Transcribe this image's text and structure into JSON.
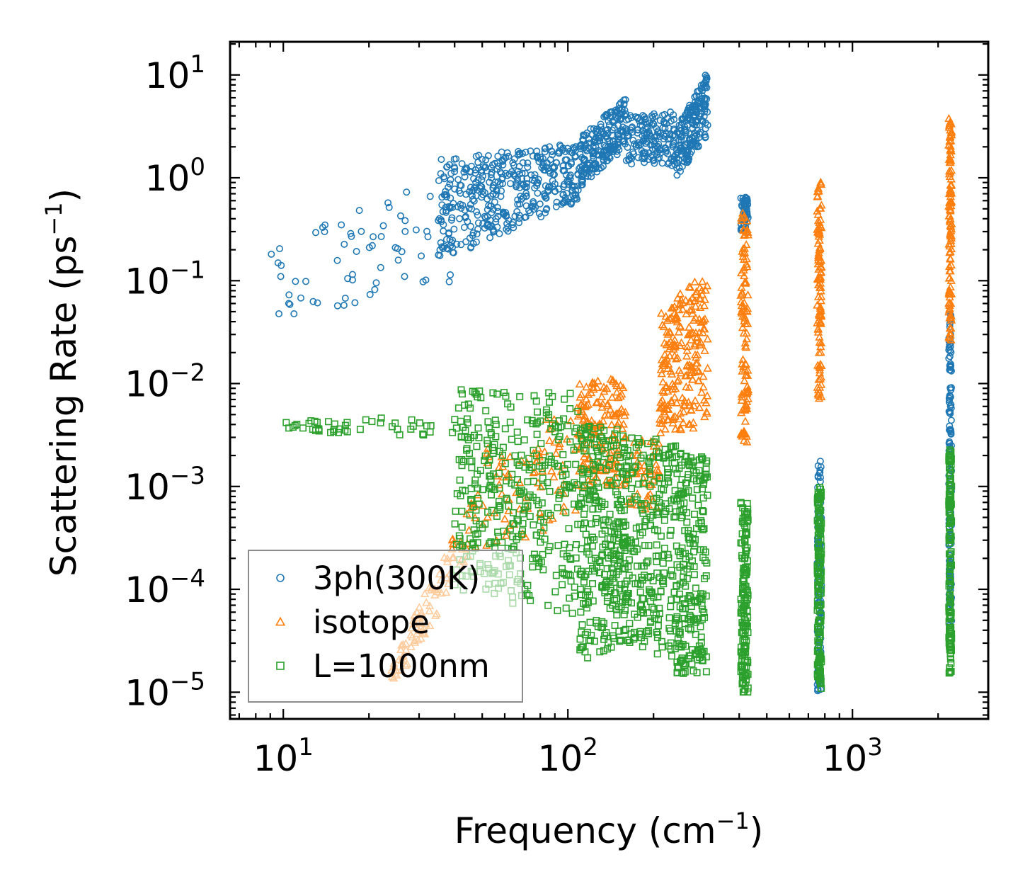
{
  "chart_data": {
    "type": "scatter",
    "title": "",
    "xlabel": {
      "text": "Frequency (cm",
      "sup": "−1",
      "close": ")"
    },
    "ylabel": {
      "text": "Scattering Rate (ps",
      "sup": "−1",
      "close": ")"
    },
    "xscale": "log",
    "yscale": "log",
    "xlim": [
      6.5,
      3000
    ],
    "ylim": [
      5.5e-06,
      21
    ],
    "x_ticks": [
      {
        "value": 10,
        "base": "10",
        "exp": "1"
      },
      {
        "value": 100,
        "base": "10",
        "exp": "2"
      },
      {
        "value": 1000,
        "base": "10",
        "exp": "3"
      }
    ],
    "y_ticks": [
      {
        "value": 10,
        "base": "10",
        "exp": "1"
      },
      {
        "value": 1,
        "base": "10",
        "exp": "0"
      },
      {
        "value": 0.1,
        "base": "10",
        "exp": "−1"
      },
      {
        "value": 0.01,
        "base": "10",
        "exp": "−2"
      },
      {
        "value": 0.001,
        "base": "10",
        "exp": "−3"
      },
      {
        "value": 0.0001,
        "base": "10",
        "exp": "−4"
      },
      {
        "value": 1e-05,
        "base": "10",
        "exp": "−5"
      }
    ],
    "legend_position": "lower-left",
    "series": [
      {
        "name": "3ph(300K)",
        "marker": "circle",
        "color": "#1f77b4",
        "bands": [
          {
            "type": "trend",
            "x_range": [
              9,
              40
            ],
            "y_start": [
              0.04,
              0.25
            ],
            "y_end": [
              0.1,
              1.2
            ],
            "n": 70
          },
          {
            "type": "trend",
            "x_range": [
              35,
              110
            ],
            "y_start": [
              0.15,
              1.5
            ],
            "y_end": [
              0.6,
              2.2
            ],
            "n": 420
          },
          {
            "type": "trend",
            "x_range": [
              110,
              160
            ],
            "y_start": [
              0.8,
              2.5
            ],
            "y_end": [
              2,
              6
            ],
            "n": 220
          },
          {
            "type": "trend",
            "x_range": [
              160,
              240
            ],
            "y_start": [
              1.3,
              4
            ],
            "y_end": [
              1.3,
              4.5
            ],
            "n": 160
          },
          {
            "type": "trend",
            "x_range": [
              240,
              310
            ],
            "y_start": [
              1,
              3
            ],
            "y_end": [
              2.5,
              11
            ],
            "n": 200
          },
          {
            "type": "column",
            "x_range": [
              405,
              430
            ],
            "y_range": [
              0.3,
              0.65
            ],
            "n": 60
          },
          {
            "type": "column",
            "x_range": [
              752,
              778
            ],
            "y_range": [
              1e-05,
              0.0018
            ],
            "n": 110
          },
          {
            "type": "column",
            "x_range": [
              2180,
              2230
            ],
            "y_range": [
              4e-05,
              0.048
            ],
            "n": 150
          }
        ]
      },
      {
        "name": "isotope",
        "marker": "triangle",
        "color": "#ff7f0e",
        "bands": [
          {
            "type": "trend",
            "x_range": [
              24,
              45
            ],
            "y_start": [
              1e-05,
              2e-05
            ],
            "y_end": [
              0.0002,
              0.0007
            ],
            "n": 90
          },
          {
            "type": "trend",
            "x_range": [
              45,
              110
            ],
            "y_start": [
              0.0002,
              0.002
            ],
            "y_end": [
              0.0005,
              0.007
            ],
            "n": 90
          },
          {
            "type": "trend",
            "x_range": [
              110,
              160
            ],
            "y_start": [
              0.001,
              0.01
            ],
            "y_end": [
              0.001,
              0.012
            ],
            "n": 160
          },
          {
            "type": "trend",
            "x_range": [
              160,
              210
            ],
            "y_start": [
              0.0006,
              0.003
            ],
            "y_end": [
              0.0006,
              0.003
            ],
            "n": 50
          },
          {
            "type": "trend",
            "x_range": [
              210,
              310
            ],
            "y_start": [
              0.003,
              0.05
            ],
            "y_end": [
              0.004,
              0.13
            ],
            "n": 220
          },
          {
            "type": "column",
            "x_range": [
              405,
              430
            ],
            "y_range": [
              0.0027,
              0.6
            ],
            "n": 110
          },
          {
            "type": "column",
            "x_range": [
              752,
              778
            ],
            "y_range": [
              0.007,
              0.95
            ],
            "n": 110
          },
          {
            "type": "column",
            "x_range": [
              2180,
              2230
            ],
            "y_range": [
              0.025,
              3.8
            ],
            "n": 120
          }
        ]
      },
      {
        "name": "L=1000nm",
        "marker": "square",
        "color": "#2ca02c",
        "bands": [
          {
            "type": "trend",
            "x_range": [
              9,
              40
            ],
            "y_start": [
              0.0035,
              0.0042
            ],
            "y_end": [
              0.003,
              0.005
            ],
            "n": 45
          },
          {
            "type": "trend",
            "x_range": [
              40,
              110
            ],
            "y_start": [
              0.0001,
              0.009
            ],
            "y_end": [
              5e-05,
              0.008
            ],
            "n": 380
          },
          {
            "type": "trend",
            "x_range": [
              110,
              160
            ],
            "y_start": [
              2e-05,
              0.004
            ],
            "y_end": [
              3e-05,
              0.0035
            ],
            "n": 300
          },
          {
            "type": "trend",
            "x_range": [
              160,
              240
            ],
            "y_start": [
              3e-05,
              0.003
            ],
            "y_end": [
              2e-05,
              0.003
            ],
            "n": 230
          },
          {
            "type": "trend",
            "x_range": [
              240,
              310
            ],
            "y_start": [
              1.5e-05,
              0.0022
            ],
            "y_end": [
              1.5e-05,
              0.0019
            ],
            "n": 220
          },
          {
            "type": "column",
            "x_range": [
              405,
              430
            ],
            "y_range": [
              1e-05,
              0.0007
            ],
            "n": 150
          },
          {
            "type": "column",
            "x_range": [
              752,
              778
            ],
            "y_range": [
              1e-05,
              0.001
            ],
            "n": 150
          },
          {
            "type": "column",
            "x_range": [
              2180,
              2230
            ],
            "y_range": [
              1.5e-05,
              0.0024
            ],
            "n": 150
          }
        ]
      }
    ]
  }
}
